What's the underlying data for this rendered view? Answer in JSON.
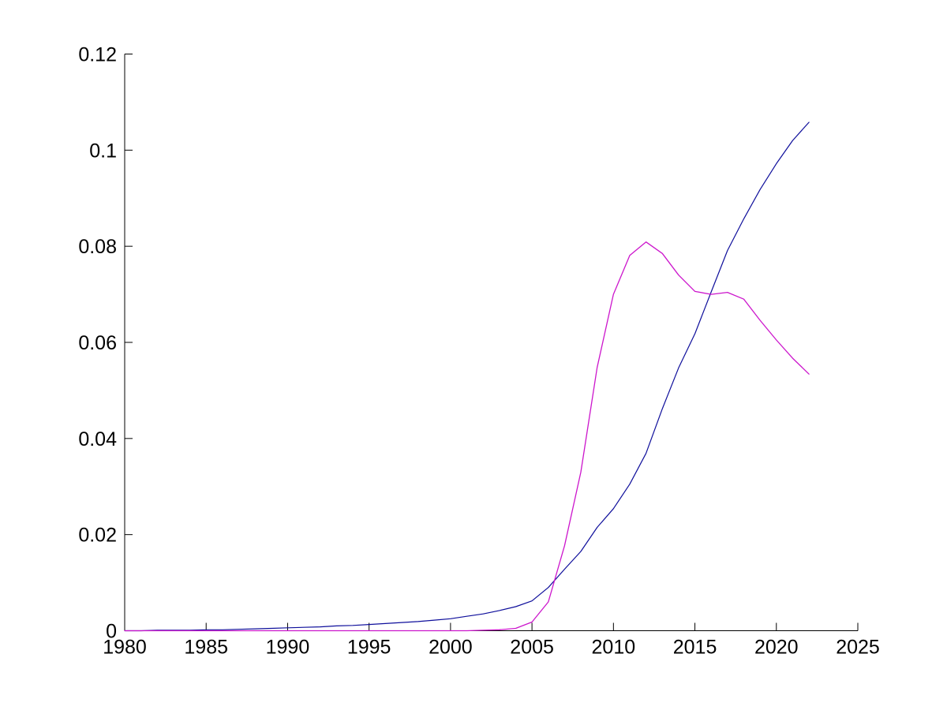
{
  "figure": {
    "background": "#ffffff",
    "title": "",
    "axis_color": "#000000",
    "tick_label_color": "#000000"
  },
  "chart_data": {
    "type": "line",
    "title": "",
    "xlabel": "",
    "ylabel": "",
    "grid": false,
    "legend": "none",
    "box": "left-bottom-spines-only",
    "tick_direction": "in",
    "xlim": [
      1980,
      2025
    ],
    "ylim": [
      0,
      0.12
    ],
    "x_ticks": [
      1980,
      1985,
      1990,
      1995,
      2000,
      2005,
      2010,
      2015,
      2020,
      2025
    ],
    "x_tick_labels": [
      "1980",
      "1985",
      "1990",
      "1995",
      "2000",
      "2005",
      "2010",
      "2015",
      "2020",
      "2025"
    ],
    "y_ticks": [
      0,
      0.02,
      0.04,
      0.06,
      0.08,
      0.1,
      0.12
    ],
    "y_tick_labels": [
      "0",
      "0.02",
      "0.04",
      "0.06",
      "0.08",
      "0.1",
      "0.12"
    ],
    "x": [
      1980,
      1981,
      1982,
      1983,
      1984,
      1985,
      1986,
      1987,
      1988,
      1989,
      1990,
      1991,
      1992,
      1993,
      1994,
      1995,
      1996,
      1997,
      1998,
      1999,
      2000,
      2001,
      2002,
      2003,
      2004,
      2005,
      2006,
      2007,
      2008,
      2009,
      2010,
      2011,
      2012,
      2013,
      2014,
      2015,
      2016,
      2017,
      2018,
      2019,
      2020,
      2021,
      2022
    ],
    "series": [
      {
        "name": "dark-blue-curve",
        "color": "#0e0e9b",
        "line_width": 1.2,
        "values": [
          0.0,
          0.0,
          0.0001,
          0.0001,
          0.0001,
          0.0002,
          0.0002,
          0.0003,
          0.0004,
          0.0005,
          0.0006,
          0.0007,
          0.0008,
          0.001,
          0.0011,
          0.0013,
          0.0015,
          0.0017,
          0.0019,
          0.0022,
          0.0025,
          0.003,
          0.0035,
          0.0042,
          0.005,
          0.0062,
          0.009,
          0.0128,
          0.0165,
          0.0215,
          0.0254,
          0.0305,
          0.0369,
          0.0462,
          0.0547,
          0.0618,
          0.0705,
          0.0791,
          0.0857,
          0.0918,
          0.0972,
          0.102,
          0.1058
        ]
      },
      {
        "name": "magenta-curve",
        "color": "#cc16cc",
        "line_width": 1.3,
        "values": [
          0.0,
          0.0,
          0.0,
          0.0,
          0.0,
          0.0,
          0.0,
          0.0,
          0.0,
          0.0,
          0.0,
          0.0,
          0.0,
          0.0,
          0.0,
          0.0,
          0.0,
          0.0,
          0.0,
          0.0,
          0.0,
          0.0,
          0.0001,
          0.0002,
          0.0005,
          0.0018,
          0.006,
          0.0177,
          0.033,
          0.0548,
          0.07,
          0.0781,
          0.0809,
          0.0785,
          0.074,
          0.0706,
          0.07,
          0.0704,
          0.069,
          0.0646,
          0.0605,
          0.0567,
          0.0534
        ]
      }
    ]
  }
}
